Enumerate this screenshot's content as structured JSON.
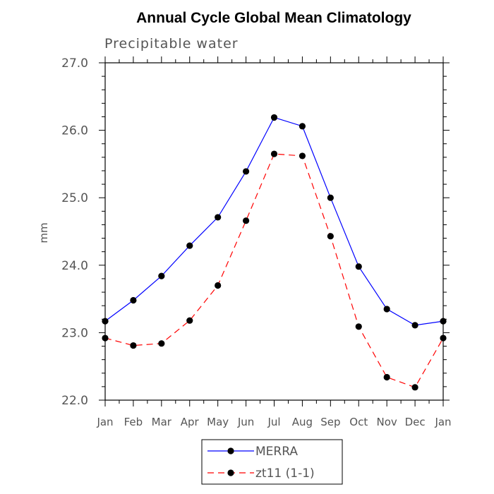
{
  "chart_data": {
    "type": "line",
    "title": "Annual Cycle Global Mean Climatology",
    "subtitle": "Precipitable water",
    "xlabel": "",
    "ylabel": "mm",
    "categories": [
      "Jan",
      "Feb",
      "Mar",
      "Apr",
      "May",
      "Jun",
      "Jul",
      "Aug",
      "Sep",
      "Oct",
      "Nov",
      "Dec",
      "Jan"
    ],
    "ylim": [
      22.0,
      27.0
    ],
    "yticks": [
      "22.0",
      "23.0",
      "24.0",
      "25.0",
      "26.0",
      "27.0"
    ],
    "grid": false,
    "legend_position": "bottom",
    "series": [
      {
        "name": "MERRA",
        "color": "#0000ff",
        "style": "solid",
        "values": [
          23.17,
          23.48,
          23.84,
          24.29,
          24.71,
          25.39,
          26.19,
          26.06,
          25.0,
          23.98,
          23.35,
          23.11,
          23.17
        ]
      },
      {
        "name": "zt11 (1-1)",
        "color": "#ff0000",
        "style": "dashed",
        "values": [
          22.92,
          22.81,
          22.84,
          23.18,
          23.7,
          24.66,
          25.65,
          25.62,
          24.43,
          23.09,
          22.34,
          22.19,
          22.92
        ]
      }
    ]
  }
}
